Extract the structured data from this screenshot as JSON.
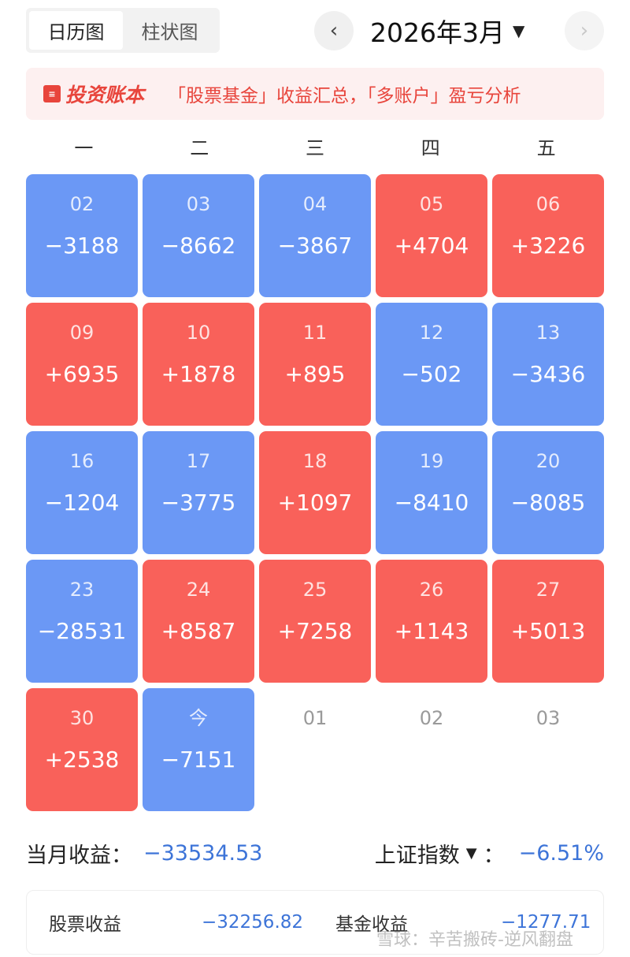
{
  "view_tabs": {
    "calendar": "日历图",
    "bar": "柱状图"
  },
  "month": {
    "title": "2026年3月",
    "prev_icon": "‹",
    "next_icon": "›"
  },
  "banner": {
    "brand": "投资账本",
    "text": "「股票基金」收益汇总，「多账户」盈亏分析"
  },
  "weekdays": [
    "一",
    "二",
    "三",
    "四",
    "五"
  ],
  "days": [
    {
      "date": "02",
      "value": "−3188",
      "status": "down"
    },
    {
      "date": "03",
      "value": "−8662",
      "status": "down"
    },
    {
      "date": "04",
      "value": "−3867",
      "status": "down"
    },
    {
      "date": "05",
      "value": "+4704",
      "status": "up"
    },
    {
      "date": "06",
      "value": "+3226",
      "status": "up"
    },
    {
      "date": "09",
      "value": "+6935",
      "status": "up"
    },
    {
      "date": "10",
      "value": "+1878",
      "status": "up"
    },
    {
      "date": "11",
      "value": "+895",
      "status": "up"
    },
    {
      "date": "12",
      "value": "−502",
      "status": "down"
    },
    {
      "date": "13",
      "value": "−3436",
      "status": "down"
    },
    {
      "date": "16",
      "value": "−1204",
      "status": "down"
    },
    {
      "date": "17",
      "value": "−3775",
      "status": "down"
    },
    {
      "date": "18",
      "value": "+1097",
      "status": "up"
    },
    {
      "date": "19",
      "value": "−8410",
      "status": "down"
    },
    {
      "date": "20",
      "value": "−8085",
      "status": "down"
    },
    {
      "date": "23",
      "value": "−28531",
      "status": "down"
    },
    {
      "date": "24",
      "value": "+8587",
      "status": "up"
    },
    {
      "date": "25",
      "value": "+7258",
      "status": "up"
    },
    {
      "date": "26",
      "value": "+1143",
      "status": "up"
    },
    {
      "date": "27",
      "value": "+5013",
      "status": "up"
    },
    {
      "date": "30",
      "value": "+2538",
      "status": "up"
    },
    {
      "date": "今",
      "value": "−7151",
      "status": "down"
    },
    {
      "date": "01",
      "value": "",
      "status": "empty"
    },
    {
      "date": "02",
      "value": "",
      "status": "empty"
    },
    {
      "date": "03",
      "value": "",
      "status": "empty"
    }
  ],
  "summary": {
    "month_label": "当月收益：",
    "month_value": "−33534.53",
    "index_label": "上证指数",
    "index_colon": "：",
    "index_value": "−6.51%"
  },
  "breakdown": {
    "stock_label": "股票收益",
    "stock_value": "−32256.82",
    "fund_label": "基金收益",
    "fund_value": "−1277.71"
  },
  "watermark": "雪球：辛苦搬砖-逆风翻盘",
  "colors": {
    "up": "#f9615a",
    "down": "#6b98f5",
    "negative_text": "#3d74d8",
    "brand": "#e8453c"
  }
}
